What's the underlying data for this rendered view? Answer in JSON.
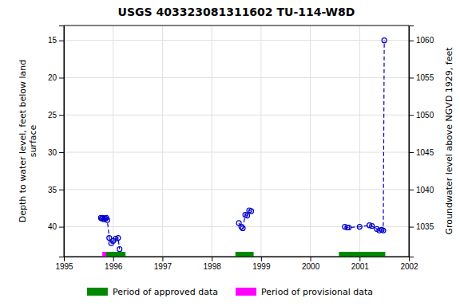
{
  "chart_data": {
    "type": "line",
    "title": "USGS 403323081311602 TU-114-W8D",
    "y_label": "Depth to water level, feet below land\nsurface",
    "y2_label": "Groundwater level above NGVD 1929, feet",
    "xlim": [
      1995,
      2002
    ],
    "xticks": [
      1995,
      1996,
      1997,
      1998,
      1999,
      2000,
      2001,
      2002
    ],
    "ylim": [
      44,
      13
    ],
    "yticks": [
      15,
      20,
      25,
      30,
      35,
      40
    ],
    "y2lim": [
      1031,
      1062
    ],
    "y2ticks": [
      1035,
      1040,
      1045,
      1050,
      1055,
      1060
    ],
    "grid": true,
    "series": [
      {
        "type": "line",
        "color": "#0000cc",
        "marker": "circle",
        "line_style": "dashed",
        "x": [
          1995.75,
          1995.77,
          1995.79,
          1995.81,
          1995.84,
          1995.86,
          1995.88,
          1995.92,
          1995.96,
          1996.0,
          1996.05,
          1996.1,
          1996.13,
          null,
          1998.55,
          1998.6,
          1998.63,
          1998.68,
          1998.72,
          1998.76,
          1998.8,
          null,
          2000.7,
          2000.75,
          2000.78,
          2001.0,
          2001.2,
          2001.25,
          2001.35,
          2001.4,
          2001.45,
          2001.48,
          2001.5
        ],
        "values": [
          38.8,
          38.9,
          38.8,
          39.0,
          38.9,
          38.8,
          39.1,
          41.5,
          42.2,
          41.9,
          41.6,
          41.5,
          43.0,
          null,
          39.5,
          40.0,
          40.2,
          38.4,
          38.5,
          37.8,
          37.9,
          null,
          40.0,
          40.1,
          40.1,
          40.0,
          39.8,
          39.9,
          40.3,
          40.5,
          40.4,
          40.5,
          15.0
        ]
      },
      {
        "name": "Period of approved data",
        "type": "period",
        "color": "#008800",
        "periods": [
          [
            1995.84,
            1996.25
          ],
          [
            1998.48,
            1998.85
          ],
          [
            2000.58,
            2001.52
          ]
        ]
      },
      {
        "name": "Period of provisional data",
        "type": "period",
        "color": "#ff00ff",
        "periods": [
          [
            1995.78,
            1995.86
          ]
        ]
      }
    ]
  }
}
